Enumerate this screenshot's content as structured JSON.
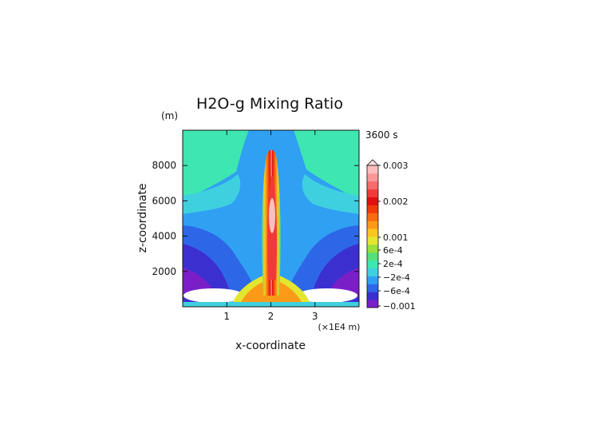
{
  "chart_data": {
    "type": "heatmap",
    "title": "H2O-g Mixing Ratio",
    "y_unit": "(m)",
    "time_label": "3600 s",
    "xlabel": "x-coordinate",
    "ylabel": "z-coordinate",
    "x_unit": "(×1E4 m)",
    "xlim": [
      0,
      4
    ],
    "ylim": [
      0,
      10000
    ],
    "x_ticks": [
      {
        "value": 1,
        "label": "1"
      },
      {
        "value": 2,
        "label": "2"
      },
      {
        "value": 3,
        "label": "3"
      }
    ],
    "y_ticks": [
      {
        "value": 2000,
        "label": "2000"
      },
      {
        "value": 4000,
        "label": "4000"
      },
      {
        "value": 6000,
        "label": "6000"
      },
      {
        "value": 8000,
        "label": "8000"
      }
    ],
    "colorbar": {
      "labels": [
        {
          "level": 0.003,
          "label": "0.003"
        },
        {
          "level": 0.002,
          "label": "0.002"
        },
        {
          "level": 0.001,
          "label": "0.001"
        },
        {
          "level": 0.0006,
          "label": "6e-4"
        },
        {
          "level": 0.0002,
          "label": "2e-4"
        },
        {
          "level": -0.0002,
          "label": "−2e-4"
        },
        {
          "level": -0.0006,
          "label": "−6e-4"
        },
        {
          "level": -0.001,
          "label": "−0.001"
        }
      ],
      "colors": [
        "#7a1fc8",
        "#3b2fd0",
        "#2e66e8",
        "#2fa0f2",
        "#3fd0e0",
        "#3ee6b2",
        "#55e07a",
        "#9ae03c",
        "#e3e62e",
        "#fdc61f",
        "#fb9a18",
        "#f76a12",
        "#f03a0a",
        "#e01010",
        "#f03a3a",
        "#f66a6a",
        "#f99898",
        "#fbbebe"
      ]
    },
    "background_level_color": "#3fd0e0"
  }
}
